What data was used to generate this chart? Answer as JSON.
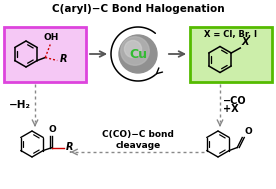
{
  "title": "C(aryl)−C Bond Halogenation",
  "title_fontsize": 7.5,
  "bg_color": "#ffffff",
  "box1_edge": "#dd44dd",
  "box1_fill": "#f5c8f5",
  "box2_edge": "#55bb00",
  "box2_fill": "#cceeaa",
  "cu_dark": "#909090",
  "cu_mid": "#b8b8b8",
  "cu_light": "#d0d0d0",
  "cu_text": "Cu",
  "cu_text_color": "#33bb33",
  "arrow_color": "#555555",
  "dash_color": "#888888",
  "minus_h2": "−H₂",
  "minus_co": "−CO",
  "plus_x": "+X",
  "x_eq": "X = Cl, Br, I",
  "bottom_label": "C(CO)−C bond\ncleavage",
  "red_bond": "#cc0000"
}
